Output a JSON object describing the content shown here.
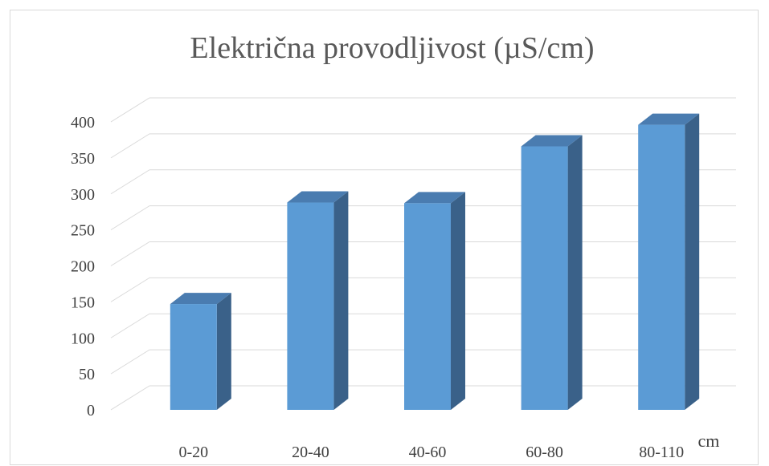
{
  "chart_data": {
    "type": "bar",
    "title": "Električna provodljivost (µS/cm)",
    "xlabel": "cm",
    "ylabel": "",
    "categories": [
      "0-20",
      "20-40",
      "40-60",
      "60-80",
      "80-110"
    ],
    "values": [
      147,
      288,
      287,
      366,
      396
    ],
    "ylim": [
      0,
      400
    ],
    "yticks": [
      0,
      50,
      100,
      150,
      200,
      250,
      300,
      350,
      400
    ],
    "grid": true,
    "style": "3d-column",
    "colors": {
      "front": "#5b9bd5",
      "side": "#3a6189",
      "top": "#4a7cb0"
    }
  }
}
